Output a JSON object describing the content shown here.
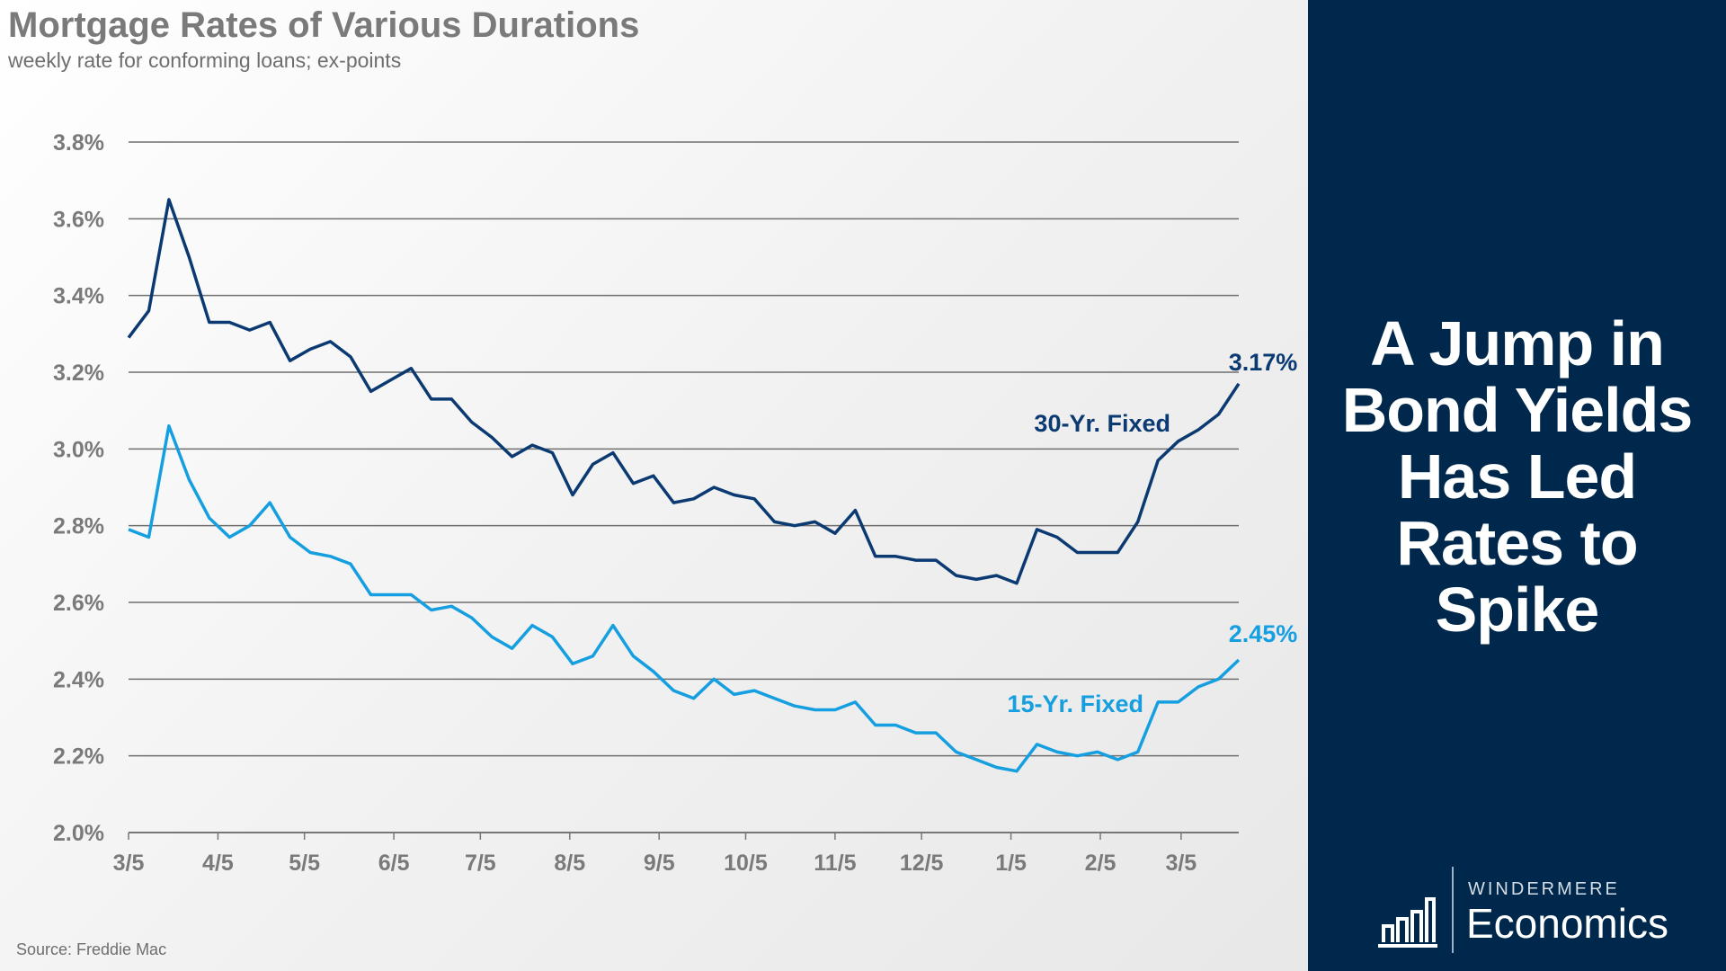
{
  "chart_data": {
    "type": "line",
    "title": "Mortgage Rates of Various Durations",
    "subtitle": "weekly rate for conforming loans; ex-points",
    "source": "Source: Freddie Mac",
    "xlabel": "",
    "ylabel": "",
    "ylim": [
      2.0,
      3.8
    ],
    "y_ticks": [
      "3.8%",
      "3.6%",
      "3.4%",
      "3.2%",
      "3.0%",
      "2.8%",
      "2.6%",
      "2.4%",
      "2.2%",
      "2.0%"
    ],
    "x_ticks": [
      "3/5",
      "4/5",
      "5/5",
      "6/5",
      "7/5",
      "8/5",
      "9/5",
      "10/5",
      "11/5",
      "12/5",
      "1/5",
      "2/5",
      "3/5"
    ],
    "x_start": "2020-03-05",
    "x_interval": "weekly",
    "grid": true,
    "series": [
      {
        "name": "30-Yr. Fixed",
        "color": "#0b3a73",
        "end_label": "3.17%",
        "values": [
          3.29,
          3.36,
          3.65,
          3.5,
          3.33,
          3.33,
          3.31,
          3.33,
          3.23,
          3.26,
          3.28,
          3.24,
          3.15,
          3.18,
          3.21,
          3.13,
          3.13,
          3.07,
          3.03,
          2.98,
          3.01,
          2.99,
          2.88,
          2.96,
          2.99,
          2.91,
          2.93,
          2.86,
          2.87,
          2.9,
          2.88,
          2.87,
          2.81,
          2.8,
          2.81,
          2.78,
          2.84,
          2.72,
          2.72,
          2.71,
          2.71,
          2.67,
          2.66,
          2.67,
          2.65,
          2.79,
          2.77,
          2.73,
          2.73,
          2.73,
          2.81,
          2.97,
          3.02,
          3.05,
          3.09,
          3.17
        ]
      },
      {
        "name": "15-Yr. Fixed",
        "color": "#159fe0",
        "end_label": "2.45%",
        "values": [
          2.79,
          2.77,
          3.06,
          2.92,
          2.82,
          2.77,
          2.8,
          2.86,
          2.77,
          2.73,
          2.72,
          2.7,
          2.62,
          2.62,
          2.62,
          2.58,
          2.59,
          2.56,
          2.51,
          2.48,
          2.54,
          2.51,
          2.44,
          2.46,
          2.54,
          2.46,
          2.42,
          2.37,
          2.35,
          2.4,
          2.36,
          2.37,
          2.35,
          2.33,
          2.32,
          2.32,
          2.34,
          2.28,
          2.28,
          2.26,
          2.26,
          2.21,
          2.19,
          2.17,
          2.16,
          2.23,
          2.21,
          2.2,
          2.21,
          2.19,
          2.21,
          2.34,
          2.34,
          2.38,
          2.4,
          2.45
        ]
      }
    ]
  },
  "panel": {
    "headline": [
      "A Jump in",
      "Bond Yields",
      "Has Led",
      "Rates to",
      "Spike"
    ],
    "background": "#00284c",
    "logo": {
      "brand": "WINDERMERE",
      "sub": "Economics",
      "icon": "bar-chart-icon"
    }
  }
}
